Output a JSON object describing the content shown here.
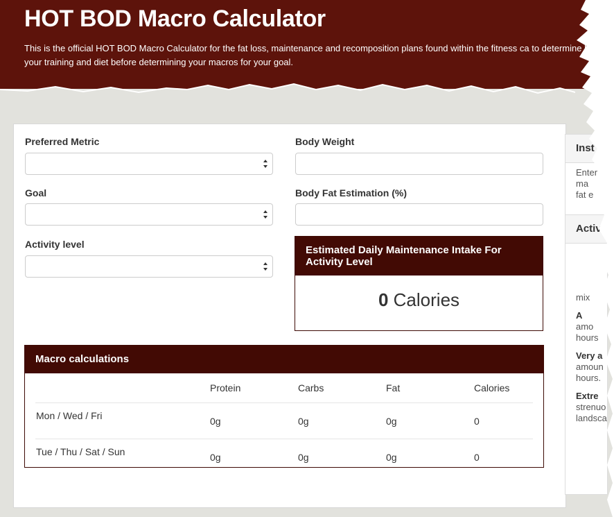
{
  "header": {
    "title": "HOT BOD Macro Calculator",
    "description": "This is the official HOT BOD Macro Calculator for the fat loss, maintenance and recomposition plans found within the fitness ca to determine how to set up your training and diet before determining your macros for your goal."
  },
  "form": {
    "preferred_metric_label": "Preferred Metric",
    "preferred_metric_value": "",
    "goal_label": "Goal",
    "goal_value": "",
    "activity_label": "Activity level",
    "activity_value": "",
    "body_weight_label": "Body Weight",
    "body_weight_value": "",
    "body_fat_label": "Body Fat Estimation (%)",
    "body_fat_value": ""
  },
  "maintenance": {
    "title": "Estimated Daily Maintenance Intake For Activity Level",
    "value": "0",
    "unit": "Calories"
  },
  "macro": {
    "title": "Macro calculations",
    "columns": [
      "",
      "Protein",
      "Carbs",
      "Fat",
      "Calories"
    ],
    "rows": [
      {
        "day": "Mon / Wed / Fri",
        "protein": "0g",
        "carbs": "0g",
        "fat": "0g",
        "calories": "0"
      },
      {
        "day": "Tue / Thu / Sat / Sun",
        "protein": "0g",
        "carbs": "0g",
        "fat": "0g",
        "calories": "0"
      }
    ]
  },
  "sidebar": {
    "instructions_title": "Inst",
    "instructions_lines": [
      "Enter",
      "ma",
      "fat e"
    ],
    "activity_title": "Activ",
    "activity_lines": [
      "mix",
      "A",
      "amo",
      "hours",
      "Very a",
      "amoun",
      "hours.",
      "Extre",
      "strenuo",
      "landsca"
    ]
  },
  "colors": {
    "header_bg": "#5d130b",
    "panel_header_bg": "#420a04",
    "page_bg": "#e2e2dd"
  }
}
